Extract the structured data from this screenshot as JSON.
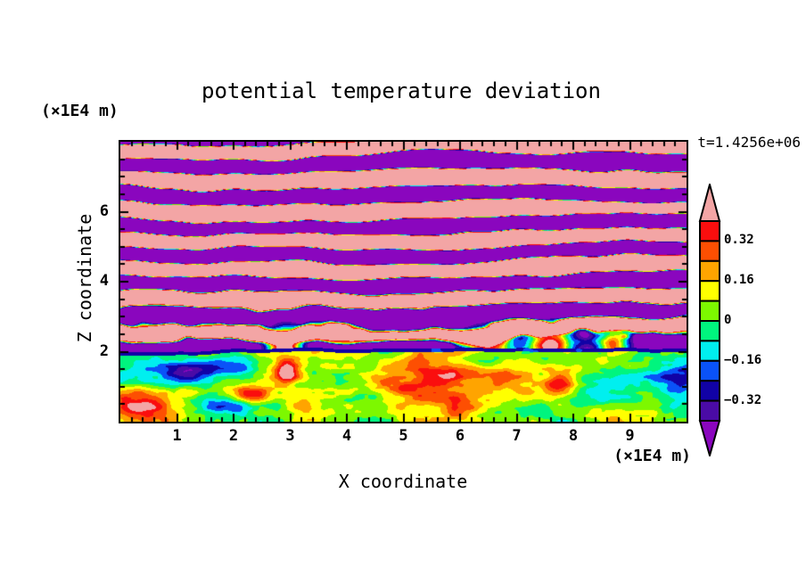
{
  "chart_data": {
    "type": "heatmap",
    "title": "potential temperature deviation",
    "annotation_top_right": "t=1.4256e+06",
    "xlabel": "X coordinate",
    "zlabel": "Z coordinate",
    "x_unit_label": "(×1E4 m)",
    "z_unit_label": "(×1E4 m)",
    "xlim": [
      0,
      10
    ],
    "zlim": [
      0,
      8
    ],
    "x_major_ticks": [
      1,
      2,
      3,
      4,
      5,
      6,
      7,
      8,
      9
    ],
    "x_minor_tick_step": 0.2,
    "z_major_ticks": [
      2,
      4,
      6
    ],
    "z_minor_tick_step": 0.5,
    "contour_levels": [
      -0.4,
      -0.32,
      -0.24,
      -0.16,
      -0.08,
      0,
      0.08,
      0.16,
      0.24,
      0.32,
      0.4
    ],
    "band_colors_low_to_high": [
      "#8A06BE",
      "#4A0BA6",
      "#1102A6",
      "#0A52F8",
      "#00EFEF",
      "#00F57E",
      "#7DF800",
      "#FFFF00",
      "#FFA400",
      "#FD4F02",
      "#FA0E0E",
      "#F3A5A5"
    ],
    "colorbar": {
      "orientation": "vertical",
      "over_arrow_color": "#F3A5A5",
      "under_arrow_color": "#8A06BE",
      "tick_labels": [
        {
          "value": 0.32,
          "text": "0.32"
        },
        {
          "value": 0.16,
          "text": "0.16"
        },
        {
          "value": 0,
          "text": "0"
        },
        {
          "value": -0.16,
          "text": "−0.16"
        },
        {
          "value": -0.32,
          "text": "−0.32"
        }
      ]
    },
    "field_model": {
      "description": "Stratified gravity-wave region above z≈2.1 with wavy alternating bands of extreme positive (pink, >0.4) and extreme negative (purple, <−0.4) deviation, band structure increasingly disordered toward the interface with thick rainbow fringes; thin strongly negative (navy) layer at the interface; turbulent convective boundary layer below z≈2.1 with values near 0 (greens) plus cyan/blue swirls and warm yellow/orange/red vortex cores; warm plumes pierce the interface near x≈2.9, 6.5, 7.6, 8.7.",
      "seed": 7,
      "interface_height": 2.08,
      "interface_wobble": 0.18,
      "band_wavelength": 0.85,
      "band_amplitude": 0.62,
      "disorder_max_below_z": 4.6,
      "disorder_range": 2.6,
      "boundary_layer_base": 0.05,
      "plumes": [
        {
          "x": 2.9,
          "w": 0.3,
          "s": 1.0
        },
        {
          "x": 6.5,
          "w": 0.45,
          "s": 0.8
        },
        {
          "x": 7.6,
          "w": 0.4,
          "s": 0.9
        },
        {
          "x": 8.7,
          "w": 0.3,
          "s": 0.7
        }
      ],
      "features": [
        {
          "x": 0.4,
          "z": 0.45,
          "rx": 0.5,
          "rz": 0.55,
          "a": 0.36
        },
        {
          "x": 0.8,
          "z": 1.35,
          "rx": 0.85,
          "rz": 0.5,
          "a": -0.24
        },
        {
          "x": 1.55,
          "z": 1.5,
          "rx": 0.8,
          "rz": 0.28,
          "a": -0.3
        },
        {
          "x": 1.95,
          "z": 0.5,
          "rx": 0.75,
          "rz": 0.24,
          "a": -0.32
        },
        {
          "x": 2.25,
          "z": 0.72,
          "rx": 0.3,
          "rz": 0.3,
          "a": 0.36
        },
        {
          "x": 2.95,
          "z": 1.45,
          "rx": 0.22,
          "rz": 0.38,
          "a": 0.5
        },
        {
          "x": 3.3,
          "z": 0.5,
          "rx": 0.4,
          "rz": 0.55,
          "a": 0.2
        },
        {
          "x": 4.7,
          "z": 1.15,
          "rx": 0.5,
          "rz": 0.32,
          "a": 0.26
        },
        {
          "x": 5.5,
          "z": 0.95,
          "rx": 0.8,
          "rz": 0.85,
          "a": 0.17
        },
        {
          "x": 5.65,
          "z": 1.35,
          "rx": 0.55,
          "rz": 0.28,
          "a": 0.28
        },
        {
          "x": 6.3,
          "z": 0.4,
          "rx": 0.8,
          "rz": 0.45,
          "a": 0.12
        },
        {
          "x": 7.0,
          "z": 1.3,
          "rx": 0.55,
          "rz": 0.6,
          "a": 0.14
        },
        {
          "x": 7.75,
          "z": 1.05,
          "rx": 0.28,
          "rz": 0.32,
          "a": 0.34
        },
        {
          "x": 8.6,
          "z": 0.95,
          "rx": 0.9,
          "rz": 0.65,
          "a": -0.26
        },
        {
          "x": 9.85,
          "z": 1.3,
          "rx": 0.6,
          "rz": 0.6,
          "a": -0.22
        }
      ]
    }
  }
}
